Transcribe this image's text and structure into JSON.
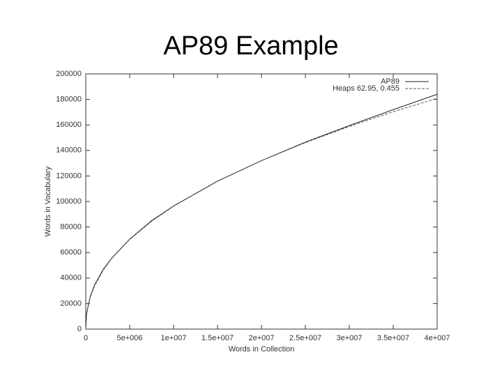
{
  "chart_data": {
    "type": "line",
    "title": "AP89 Example",
    "x_label": "Words in Collection",
    "y_label": "Words in Vocabulary",
    "x": [
      0,
      100000,
      500000,
      1000000,
      2000000,
      3000000,
      5000000,
      7500000,
      10000000,
      15000000,
      20000000,
      25000000,
      30000000,
      35000000,
      40000000
    ],
    "series": [
      {
        "name": "AP89",
        "color": "#222222",
        "dashed": false,
        "values": [
          0,
          12500,
          25500,
          34500,
          47000,
          56000,
          70500,
          85000,
          96500,
          116000,
          132000,
          146500,
          159500,
          172000,
          184000
        ]
      },
      {
        "name": "Heaps 62.95, 0.455",
        "color": "#555555",
        "dashed": true,
        "values": [
          0,
          11855,
          24657,
          33785,
          46330,
          55710,
          70250,
          84540,
          96310,
          115830,
          132010,
          146170,
          158820,
          170340,
          180900
        ]
      }
    ],
    "xlim": [
      0,
      40000000
    ],
    "xticks": [
      0,
      {
        "value": 5000000,
        "label": "5e+006"
      },
      {
        "value": 10000000,
        "label": "1e+007"
      },
      {
        "value": 15000000,
        "label": "1.5e+007"
      },
      {
        "value": 20000000,
        "label": "2e+007"
      },
      {
        "value": 25000000,
        "label": "2.5e+007"
      },
      {
        "value": 30000000,
        "label": "3e+007"
      },
      {
        "value": 35000000,
        "label": "3.5e+007"
      },
      {
        "value": 40000000,
        "label": "4e+007"
      }
    ],
    "ylim": [
      0,
      200000
    ],
    "yticks": [
      0,
      20000,
      40000,
      60000,
      80000,
      100000,
      120000,
      140000,
      160000,
      180000,
      200000
    ],
    "legend": "top-right"
  }
}
